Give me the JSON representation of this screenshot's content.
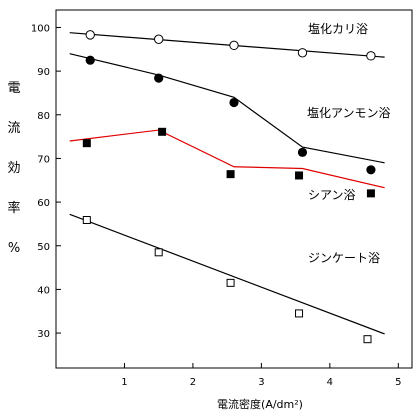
{
  "chart_data": {
    "type": "scatter",
    "xlabel": "電流密度(A/dm²)",
    "ylabel_chars": [
      "電",
      "流",
      "効",
      "率",
      "%"
    ],
    "xlim": [
      0,
      5.2
    ],
    "ylim": [
      22,
      104
    ],
    "x_ticks": [
      1,
      2,
      3,
      4,
      5
    ],
    "y_ticks": [
      30,
      40,
      50,
      60,
      70,
      80,
      90,
      100
    ],
    "grid": false,
    "series": [
      {
        "name": "塩化カリ浴",
        "marker": "open-circle",
        "line_color": "#000000",
        "x": [
          0.5,
          1.5,
          2.6,
          3.6,
          4.6
        ],
        "y": [
          98.3,
          97.3,
          95.9,
          94.2,
          93.5
        ],
        "fit": [
          [
            0.2,
            98.8
          ],
          [
            4.8,
            93.2
          ]
        ]
      },
      {
        "name": "塩化アンモン浴",
        "marker": "filled-circle",
        "line_color": "#000000",
        "x": [
          0.5,
          1.5,
          2.6,
          3.6,
          4.6
        ],
        "y": [
          92.5,
          88.4,
          82.8,
          71.4,
          67.4
        ],
        "fit": [
          [
            0.2,
            94.0
          ],
          [
            1.5,
            89.1
          ],
          [
            2.6,
            84.0
          ],
          [
            3.6,
            72.6
          ],
          [
            4.8,
            69.0
          ]
        ]
      },
      {
        "name": "シアン浴",
        "marker": "filled-square",
        "line_color": "#e00000",
        "x": [
          0.45,
          1.55,
          2.55,
          3.55,
          4.6
        ],
        "y": [
          73.5,
          76.1,
          66.4,
          66.1,
          62.0
        ],
        "fit": [
          [
            0.2,
            74.0
          ],
          [
            1.5,
            76.5
          ],
          [
            2.6,
            68.1
          ],
          [
            3.6,
            67.7
          ],
          [
            4.8,
            63.3
          ]
        ]
      },
      {
        "name": "ジンケート浴",
        "marker": "open-square",
        "line_color": "#000000",
        "x": [
          0.45,
          1.5,
          2.55,
          3.55,
          4.55
        ],
        "y": [
          55.9,
          48.5,
          41.5,
          34.5,
          28.6
        ],
        "fit": [
          [
            0.2,
            57.2
          ],
          [
            4.8,
            29.8
          ]
        ]
      }
    ]
  }
}
